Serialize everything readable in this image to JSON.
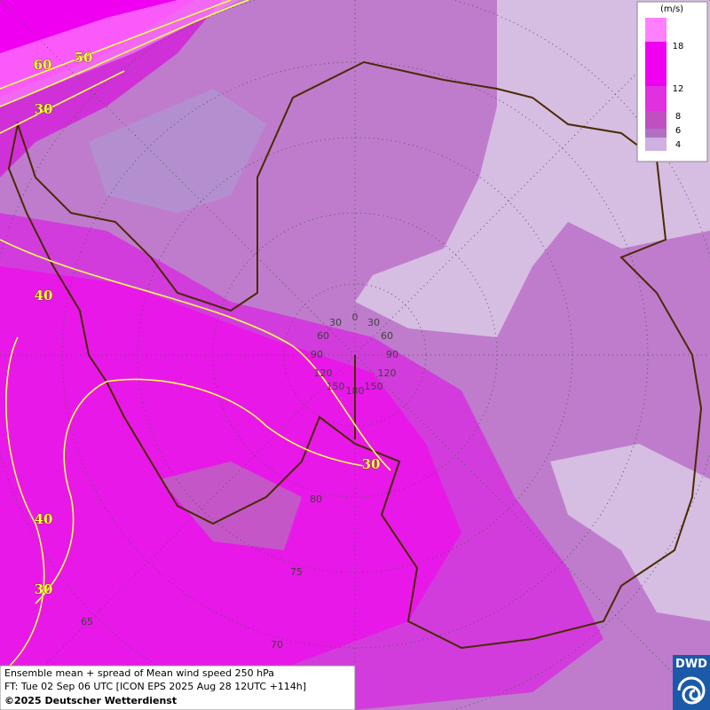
{
  "legend": {
    "unit": "(m/s)",
    "ticks": [
      18,
      12,
      8,
      6,
      4
    ]
  },
  "contour_labels": [
    60,
    50,
    30,
    40,
    40,
    30,
    30
  ],
  "graticule": {
    "longitude": [
      0,
      30,
      30,
      60,
      60,
      90,
      90,
      120,
      120,
      150,
      150,
      180
    ],
    "latitude": [
      80,
      75,
      70,
      65
    ]
  },
  "footer": {
    "line1": "Ensemble mean + spread of Mean wind speed 250 hPa",
    "line2": "FT: Tue 02 Sep 06 UTC [ICON EPS 2025 Aug 28 12UTC +114h]",
    "line3": "©2025 Deutscher Wetterdienst"
  },
  "logo": "DWD"
}
